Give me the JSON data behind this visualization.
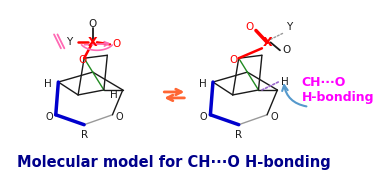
{
  "title": "Molecular model for CH···O H-bonding",
  "title_color": "#00008B",
  "title_fontsize": 10.5,
  "bg_color": "#ffffff",
  "magenta_label1": "CH···O",
  "magenta_label2": "H-bonding",
  "magenta_color": "#FF00FF",
  "red_color": "#FF0000",
  "blue_color": "#0000CD",
  "black_color": "#1a1a1a",
  "gray_color": "#999999",
  "green_color": "#228B22",
  "orange_arrow_color": "#FF6633",
  "cyan_arrow_color": "#5599CC",
  "pink_color": "#FF69B4",
  "darkred_color": "#CC0000"
}
